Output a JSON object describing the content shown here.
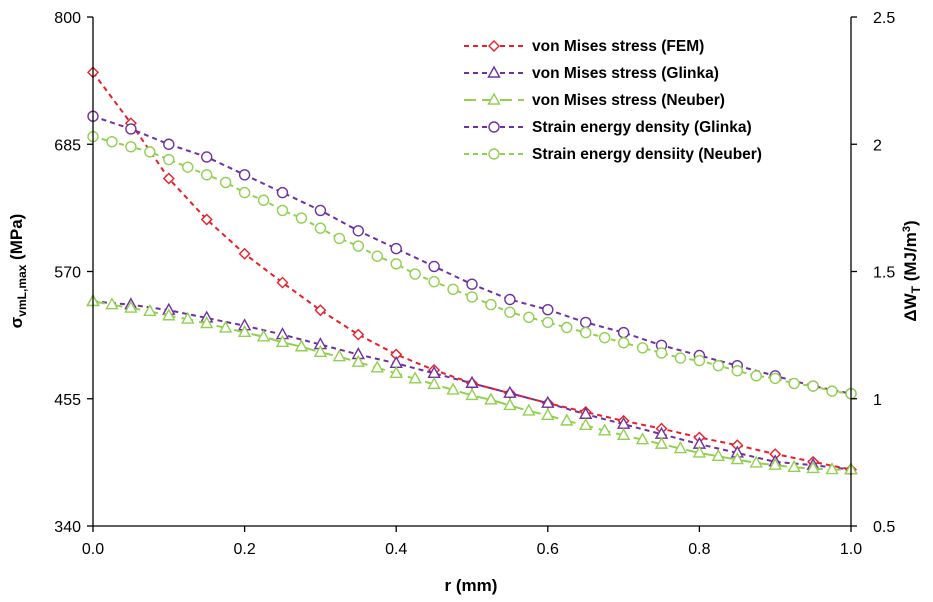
{
  "chart_data": {
    "type": "line",
    "title": "",
    "xlabel": "r (mm)",
    "ylabel_left": {
      "main": "σ",
      "sub": "vmL,max",
      "unit": " (MPa)"
    },
    "ylabel_right": {
      "main": "ΔW",
      "sub": "T",
      "unit_pre": " (MJ/m",
      "sup": "3",
      "unit_post": ")"
    },
    "xlim": [
      0.0,
      1.0
    ],
    "ylim_left": [
      340,
      800
    ],
    "ylim_right": [
      0.5,
      2.5
    ],
    "x_ticks": [
      "0.0",
      "0.2",
      "0.4",
      "0.6",
      "0.8",
      "1.0"
    ],
    "y_ticks_left": [
      "340",
      "455",
      "570",
      "685",
      "800"
    ],
    "y_ticks_right": [
      "0.5",
      "1",
      "1.5",
      "2",
      "2.5"
    ],
    "grid": false,
    "legend_position": "top-right",
    "series": [
      {
        "name": "von Mises stress (FEM)",
        "axis": "left",
        "color": "#e8202a",
        "marker": "diamond",
        "dash": "5,4",
        "x": [
          0.0,
          0.05,
          0.1,
          0.15,
          0.2,
          0.25,
          0.3,
          0.35,
          0.4,
          0.45,
          0.5,
          0.55,
          0.6,
          0.65,
          0.7,
          0.75,
          0.8,
          0.85,
          0.9,
          0.95,
          1.0
        ],
        "y": [
          750,
          704,
          654,
          617,
          586,
          560,
          535,
          513,
          495,
          481,
          469,
          460,
          451,
          443,
          435,
          428,
          420,
          413,
          405,
          398,
          391
        ]
      },
      {
        "name": "von Mises stress (Glinka)",
        "axis": "left",
        "color": "#7030a0",
        "marker": "triangle",
        "dash": "5,4",
        "x": [
          0.0,
          0.05,
          0.1,
          0.15,
          0.2,
          0.25,
          0.3,
          0.35,
          0.4,
          0.45,
          0.5,
          0.55,
          0.6,
          0.65,
          0.7,
          0.75,
          0.8,
          0.85,
          0.9,
          0.95,
          1.0
        ],
        "y": [
          543,
          540,
          535,
          528,
          521,
          513,
          504,
          495,
          487,
          478,
          469,
          460,
          451,
          441,
          432,
          423,
          414,
          406,
          398,
          395,
          391
        ]
      },
      {
        "name": "von Mises stress (Neuber)",
        "axis": "left",
        "color": "#92d050",
        "marker": "triangle",
        "dash": "12,6",
        "x": [
          0.0,
          0.025,
          0.05,
          0.075,
          0.1,
          0.125,
          0.15,
          0.175,
          0.2,
          0.225,
          0.25,
          0.275,
          0.3,
          0.325,
          0.35,
          0.375,
          0.4,
          0.425,
          0.45,
          0.475,
          0.5,
          0.525,
          0.55,
          0.575,
          0.6,
          0.625,
          0.65,
          0.675,
          0.7,
          0.725,
          0.75,
          0.775,
          0.8,
          0.825,
          0.85,
          0.875,
          0.9,
          0.925,
          0.95,
          0.975,
          1.0
        ],
        "y": [
          543,
          540,
          537,
          534,
          530,
          527,
          523,
          519,
          515,
          511,
          506,
          502,
          497,
          493,
          488,
          483,
          478,
          473,
          468,
          463,
          458,
          454,
          449,
          444,
          440,
          435,
          431,
          426,
          422,
          418,
          414,
          410,
          406,
          403,
          400,
          397,
          395,
          393,
          392,
          391,
          391
        ]
      },
      {
        "name": "Strain energy density (Glinka)",
        "axis": "right",
        "color": "#7030a0",
        "marker": "circle",
        "dash": "5,4",
        "x": [
          0.0,
          0.05,
          0.1,
          0.15,
          0.2,
          0.25,
          0.3,
          0.35,
          0.4,
          0.45,
          0.5,
          0.55,
          0.6,
          0.65,
          0.7,
          0.75,
          0.8,
          0.85,
          0.9,
          0.95,
          1.0
        ],
        "y": [
          2.11,
          2.06,
          2.0,
          1.95,
          1.88,
          1.81,
          1.74,
          1.66,
          1.59,
          1.52,
          1.45,
          1.39,
          1.35,
          1.3,
          1.26,
          1.21,
          1.17,
          1.13,
          1.09,
          1.05,
          1.02
        ]
      },
      {
        "name": "Strain energy densiity (Neuber)",
        "axis": "right",
        "color": "#92d050",
        "marker": "circle",
        "dash": "5,4",
        "x": [
          0.0,
          0.025,
          0.05,
          0.075,
          0.1,
          0.125,
          0.15,
          0.175,
          0.2,
          0.225,
          0.25,
          0.275,
          0.3,
          0.325,
          0.35,
          0.375,
          0.4,
          0.425,
          0.45,
          0.475,
          0.5,
          0.525,
          0.55,
          0.575,
          0.6,
          0.625,
          0.65,
          0.675,
          0.7,
          0.725,
          0.75,
          0.775,
          0.8,
          0.825,
          0.85,
          0.875,
          0.9,
          0.925,
          0.95,
          0.975,
          1.0
        ],
        "y": [
          2.03,
          2.01,
          1.99,
          1.97,
          1.94,
          1.91,
          1.88,
          1.85,
          1.81,
          1.78,
          1.74,
          1.71,
          1.67,
          1.63,
          1.6,
          1.56,
          1.53,
          1.49,
          1.46,
          1.43,
          1.4,
          1.37,
          1.34,
          1.32,
          1.3,
          1.28,
          1.26,
          1.24,
          1.22,
          1.2,
          1.18,
          1.16,
          1.15,
          1.13,
          1.11,
          1.09,
          1.08,
          1.06,
          1.05,
          1.03,
          1.02
        ]
      }
    ]
  }
}
